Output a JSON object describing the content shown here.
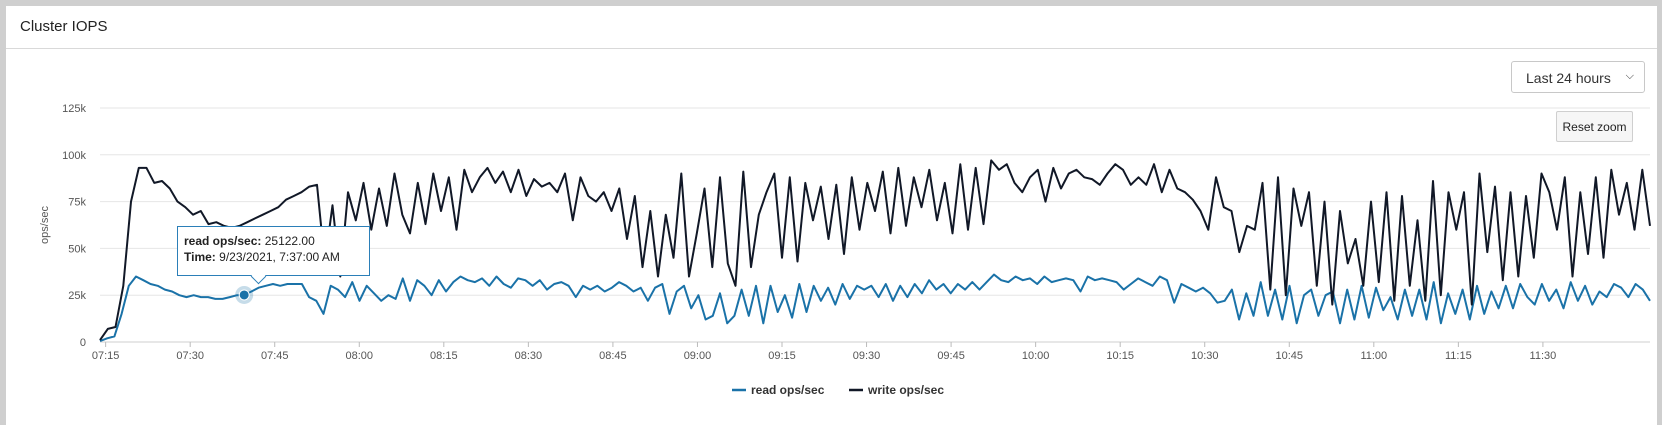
{
  "panel": {
    "title": "Cluster IOPS"
  },
  "controls": {
    "range_value": "Last 24 hours",
    "chevron_icon": "chevron-down-icon",
    "reset_label": "Reset zoom"
  },
  "tooltip": {
    "series_label": "read ops/sec",
    "series_value": "25122.00",
    "time_label": "Time",
    "time_value": "9/23/2021, 7:37:00 AM"
  },
  "chart_data": {
    "type": "line",
    "ylabel": "ops/sec",
    "ylim": [
      0,
      125000
    ],
    "yticks": [
      "0",
      "25k",
      "50k",
      "75k",
      "100k",
      "125k"
    ],
    "xticks": [
      "07:15",
      "07:30",
      "07:45",
      "08:00",
      "08:15",
      "08:30",
      "08:45",
      "09:00",
      "09:15",
      "09:30",
      "09:45",
      "10:00",
      "10:15",
      "10:30",
      "10:45",
      "11:00",
      "11:15",
      "11:30"
    ],
    "x_start": "07:14",
    "x_end": "11:49",
    "grid": true,
    "legend_position": "bottom-center",
    "series": [
      {
        "name": "read ops/sec",
        "color": "#1a72a8",
        "values": [
          500,
          2000,
          3000,
          15000,
          30000,
          35000,
          33000,
          31000,
          30000,
          28000,
          27000,
          25000,
          24000,
          25000,
          24000,
          24000,
          23000,
          23000,
          24000,
          25000,
          25122,
          27000,
          29000,
          30000,
          31000,
          30000,
          31000,
          31000,
          31000,
          24000,
          22000,
          15000,
          30000,
          28000,
          24000,
          32000,
          22000,
          30000,
          26000,
          22000,
          25000,
          23000,
          34000,
          22000,
          33000,
          30000,
          25000,
          33000,
          27000,
          32000,
          35000,
          33000,
          32000,
          34000,
          30000,
          35000,
          31000,
          29000,
          34000,
          33000,
          30000,
          33000,
          28000,
          31000,
          32000,
          30000,
          24000,
          30000,
          28000,
          30000,
          27000,
          29000,
          32000,
          30000,
          27000,
          29000,
          22000,
          29000,
          31000,
          15000,
          27000,
          30000,
          18000,
          25000,
          12000,
          14000,
          26000,
          10000,
          14000,
          28000,
          14000,
          30000,
          10000,
          30000,
          16000,
          25000,
          13000,
          31000,
          16000,
          30000,
          22000,
          29000,
          20000,
          31000,
          23000,
          30000,
          28000,
          30000,
          24000,
          31000,
          22000,
          30000,
          24000,
          31000,
          26000,
          33000,
          28000,
          31000,
          26000,
          31000,
          28000,
          32000,
          28000,
          32000,
          36000,
          33000,
          32000,
          35000,
          33000,
          34000,
          31000,
          35000,
          32000,
          33000,
          34000,
          33000,
          27000,
          35000,
          33000,
          34000,
          33000,
          32000,
          28000,
          31000,
          34000,
          32000,
          30000,
          35000,
          33000,
          21000,
          31000,
          29000,
          27000,
          29000,
          26000,
          21000,
          22000,
          28000,
          12000,
          26000,
          14000,
          32000,
          14000,
          28000,
          12000,
          30000,
          10000,
          25000,
          28000,
          14000,
          25000,
          27000,
          10000,
          28000,
          12000,
          30000,
          13000,
          29000,
          17000,
          24000,
          12000,
          28000,
          14000,
          28000,
          12000,
          32000,
          10000,
          26000,
          15000,
          28000,
          12000,
          30000,
          15000,
          27000,
          18000,
          30000,
          18000,
          31000,
          24000,
          20000,
          31000,
          22000,
          28000,
          18000,
          32000,
          22000,
          30000,
          20000,
          27000,
          24000,
          31000,
          29000,
          24000,
          31000,
          28000,
          22000
        ],
        "hover_index": 20
      },
      {
        "name": "write ops/sec",
        "color": "#111827",
        "values": [
          1000,
          7000,
          8000,
          30000,
          75000,
          93000,
          93000,
          85000,
          86000,
          82000,
          75000,
          72000,
          68000,
          70000,
          63000,
          64000,
          62000,
          61000,
          62000,
          64000,
          66000,
          68000,
          70000,
          72000,
          76000,
          78000,
          80000,
          83000,
          84000,
          42000,
          73000,
          35000,
          80000,
          65000,
          85000,
          60000,
          82000,
          62000,
          90000,
          68000,
          58000,
          85000,
          63000,
          90000,
          70000,
          88000,
          60000,
          92000,
          80000,
          88000,
          93000,
          85000,
          91000,
          80000,
          92000,
          78000,
          87000,
          83000,
          85000,
          80000,
          90000,
          65000,
          88000,
          78000,
          75000,
          80000,
          70000,
          82000,
          55000,
          78000,
          40000,
          70000,
          35000,
          68000,
          45000,
          90000,
          35000,
          58000,
          82000,
          40000,
          88000,
          42000,
          30000,
          91000,
          40000,
          68000,
          80000,
          90000,
          45000,
          88000,
          43000,
          85000,
          65000,
          83000,
          55000,
          84000,
          47000,
          88000,
          60000,
          85000,
          70000,
          91000,
          58000,
          93000,
          62000,
          88000,
          72000,
          92000,
          65000,
          85000,
          58000,
          95000,
          60000,
          93000,
          63000,
          97000,
          92000,
          95000,
          85000,
          80000,
          88000,
          92000,
          75000,
          93000,
          82000,
          90000,
          92000,
          88000,
          87000,
          84000,
          90000,
          95000,
          92000,
          84000,
          88000,
          84000,
          95000,
          80000,
          92000,
          82000,
          80000,
          76000,
          70000,
          60000,
          88000,
          72000,
          70000,
          48000,
          62000,
          60000,
          85000,
          28000,
          88000,
          25000,
          82000,
          62000,
          80000,
          30000,
          75000,
          20000,
          70000,
          42000,
          55000,
          30000,
          75000,
          32000,
          80000,
          22000,
          78000,
          30000,
          65000,
          22000,
          86000,
          25000,
          80000,
          60000,
          80000,
          20000,
          90000,
          48000,
          83000,
          33000,
          80000,
          35000,
          78000,
          45000,
          90000,
          80000,
          60000,
          88000,
          35000,
          80000,
          47000,
          88000,
          45000,
          92000,
          68000,
          85000,
          60000,
          92000,
          62000
        ],
        "hover_index": null
      }
    ]
  }
}
